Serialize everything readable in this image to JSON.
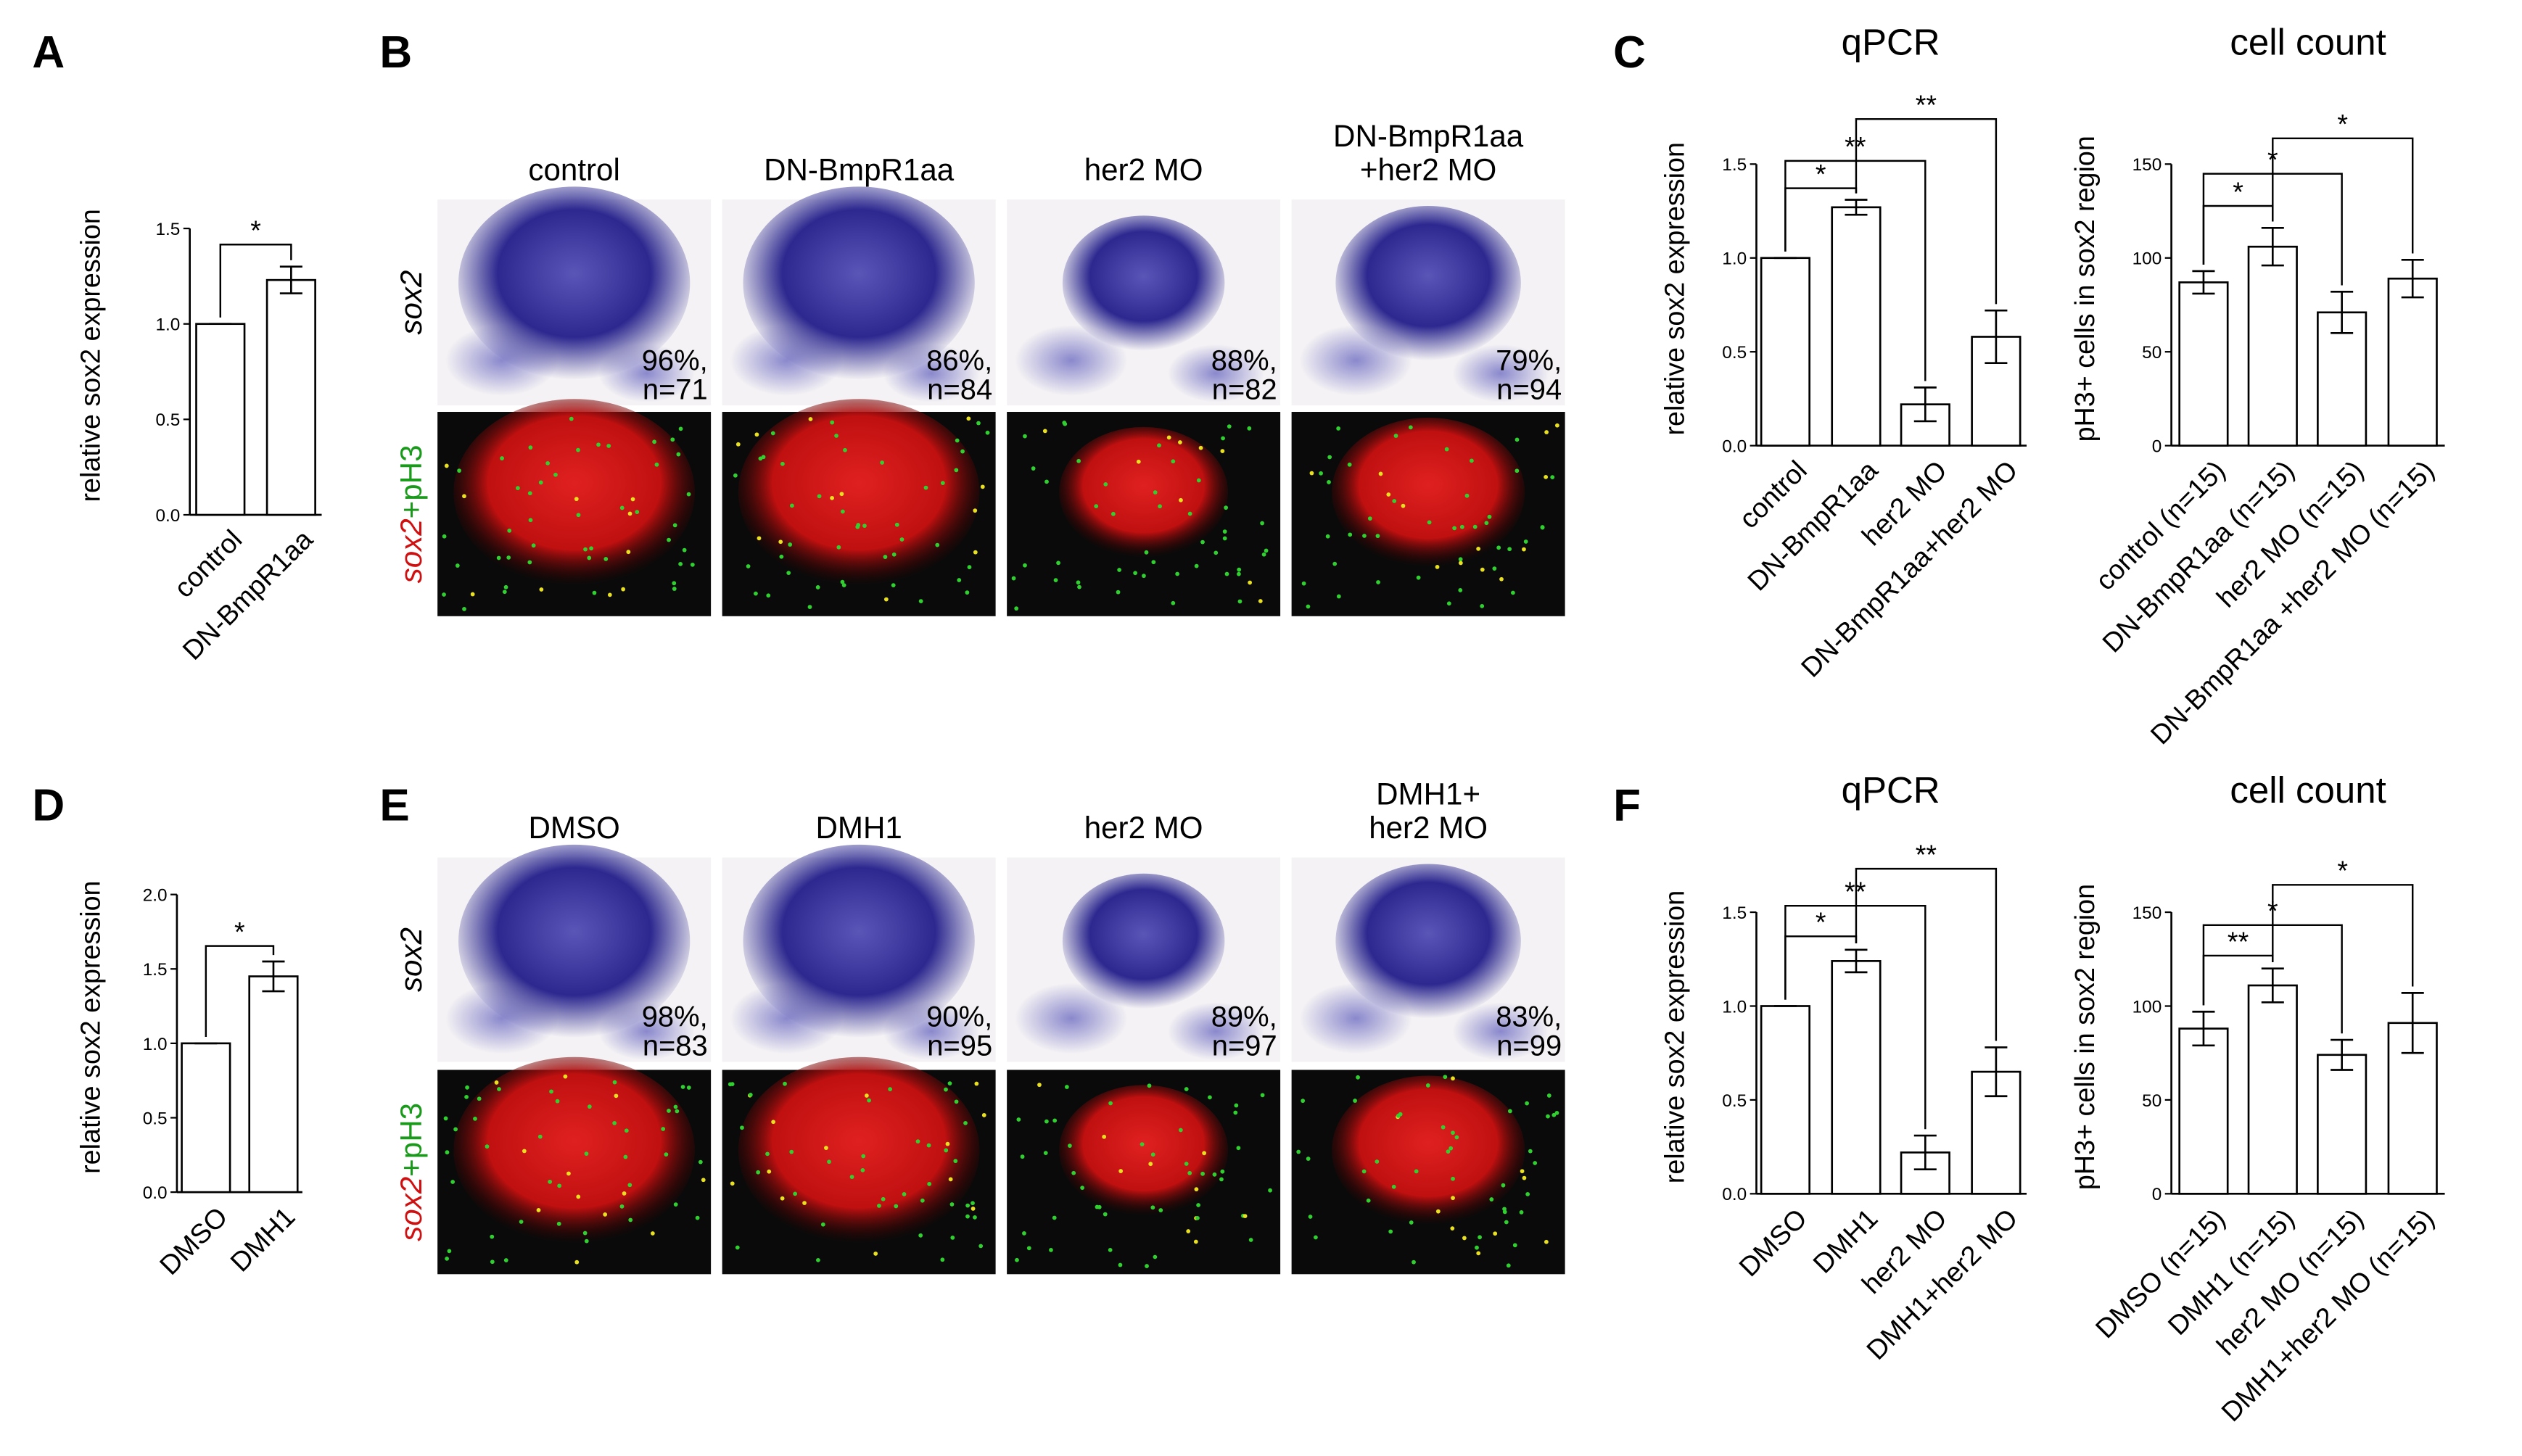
{
  "panels": {
    "letters": [
      "A",
      "B",
      "C",
      "D",
      "E",
      "F"
    ]
  },
  "chart_data": [
    {
      "type": "bar",
      "ylabel": "relative sox2 expression",
      "categories": [
        "control",
        "DN-BmpR1aa"
      ],
      "values": [
        1,
        1.23
      ],
      "errors": [
        0,
        0.07
      ],
      "ylim": [
        0,
        1.5
      ],
      "yticks": [
        {
          "value": 0,
          "label": "0.0"
        },
        0.5,
        {
          "value": 1,
          "label": "1.0"
        },
        1.5
      ],
      "color": "#ffffff",
      "annotations": [
        "*"
      ]
    },
    {
      "type": "bar",
      "title": "qPCR",
      "ylabel": "relative sox2 expression",
      "categories": [
        "control",
        "DN-BmpR1aa",
        "her2 MO",
        "DN-BmpR1aa+her2 MO"
      ],
      "values": [
        1,
        1.27,
        0.22,
        0.58
      ],
      "errors": [
        0,
        0.04,
        0.09,
        0.14
      ],
      "ylim": [
        0,
        1.5
      ],
      "yticks": [
        {
          "value": 0,
          "label": "0.0"
        },
        0.5,
        {
          "value": 1,
          "label": "1.0"
        },
        1.5
      ],
      "color": "#ffffff",
      "annotations": [
        "*",
        "**",
        "**"
      ]
    },
    {
      "type": "bar",
      "title": "cell count",
      "ylabel": "pH3+ cells in sox2 region",
      "categories": [
        "control (n=15)",
        "DN-BmpR1aa (n=15)",
        "her2 MO (n=15)",
        "DN-BmpR1aa +her2 MO (n=15)"
      ],
      "values": [
        87,
        106,
        71,
        89
      ],
      "errors": [
        6,
        10,
        11,
        10
      ],
      "ylim": [
        0,
        150
      ],
      "yticks": [
        0,
        50,
        100,
        150
      ],
      "color": "#ffffff",
      "annotations": [
        "*",
        "*",
        "*"
      ]
    },
    {
      "type": "bar",
      "ylabel": "relative sox2 expression",
      "categories": [
        "DMSO",
        "DMH1"
      ],
      "values": [
        1,
        1.45
      ],
      "errors": [
        0,
        0.1
      ],
      "ylim": [
        0,
        2
      ],
      "yticks": [
        {
          "value": 0,
          "label": "0.0"
        },
        0.5,
        {
          "value": 1,
          "label": "1.0"
        },
        1.5,
        {
          "value": 2,
          "label": "2.0"
        }
      ],
      "color": "#ffffff",
      "annotations": [
        "*"
      ]
    },
    {
      "type": "bar",
      "title": "qPCR",
      "ylabel": "relative sox2 expression",
      "categories": [
        "DMSO",
        "DMH1",
        "her2 MO",
        "DMH1+her2 MO"
      ],
      "values": [
        1,
        1.24,
        0.22,
        0.65
      ],
      "errors": [
        0,
        0.06,
        0.09,
        0.13
      ],
      "ylim": [
        0,
        1.5
      ],
      "yticks": [
        {
          "value": 0,
          "label": "0.0"
        },
        0.5,
        {
          "value": 1,
          "label": "1.0"
        },
        1.5
      ],
      "color": "#ffffff",
      "annotations": [
        "*",
        "**",
        "**"
      ]
    },
    {
      "type": "bar",
      "title": "cell count",
      "ylabel": "pH3+ cells in sox2 region",
      "categories": [
        "DMSO (n=15)",
        "DMH1 (n=15)",
        "her2 MO (n=15)",
        "DMH1+her2 MO (n=15)"
      ],
      "values": [
        88,
        111,
        74,
        91
      ],
      "errors": [
        9,
        9,
        8,
        16
      ],
      "ylim": [
        0,
        150
      ],
      "yticks": [
        0,
        50,
        100,
        150
      ],
      "color": "#ffffff",
      "annotations": [
        "**",
        "*",
        "*"
      ]
    }
  ],
  "images": [
    {
      "columns": [
        [
          "control"
        ],
        [
          "DN-BmpR1aa"
        ],
        [
          "her2 MO"
        ],
        [
          "DN-BmpR1aa",
          "+her2 MO"
        ]
      ],
      "row_labels": [
        "sox2",
        [
          "sox2",
          "+pH3"
        ]
      ],
      "captions": [
        [
          "96%,",
          "n=71"
        ],
        [
          "86%,",
          "n=84"
        ],
        [
          "88%,",
          "n=82"
        ],
        [
          "79%,",
          "n=94"
        ]
      ]
    },
    {
      "columns": [
        [
          "DMSO"
        ],
        [
          "DMH1"
        ],
        [
          "her2 MO"
        ],
        [
          "DMH1+",
          "her2 MO"
        ]
      ],
      "row_labels": [
        "sox2",
        [
          "sox2",
          "+pH3"
        ]
      ],
      "captions": [
        [
          "98%,",
          "n=83"
        ],
        [
          "90%,",
          "n=95"
        ],
        [
          "89%,",
          "n=97"
        ],
        [
          "83%,",
          "n=99"
        ]
      ]
    }
  ]
}
